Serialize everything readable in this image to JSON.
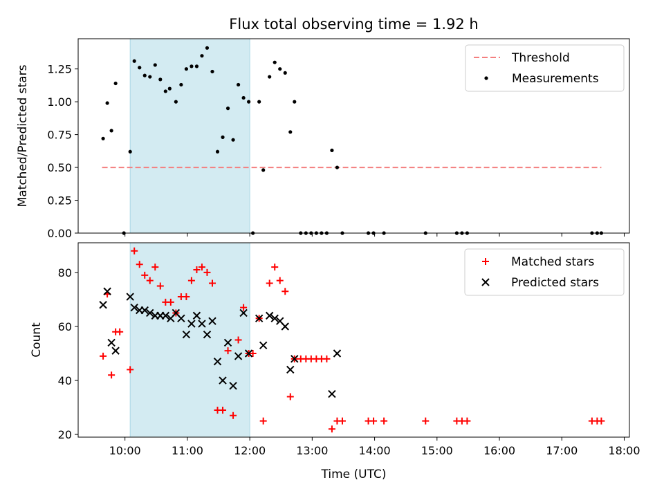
{
  "chart_data": [
    {
      "type": "scatter",
      "title": "Flux total observing time = 1.92 h",
      "xlabel": "",
      "ylabel": "Matched/Predicted stars",
      "xlim": [
        "09:15",
        "18:05"
      ],
      "ylim": [
        0,
        1.48
      ],
      "y_ticks": [
        0.0,
        0.25,
        0.5,
        0.75,
        1.0,
        1.25
      ],
      "y_tick_labels": [
        "0.00",
        "0.25",
        "0.50",
        "0.75",
        "1.00",
        "1.25"
      ],
      "x_ticks": [
        "10:00",
        "11:00",
        "12:00",
        "13:00",
        "14:00",
        "15:00",
        "16:00",
        "17:00",
        "18:00"
      ],
      "x_tick_labels_visible": false,
      "highlight_span": [
        "10:05",
        "12:00"
      ],
      "highlight_color": "#d3ebf2",
      "legend": {
        "position": "top-right",
        "entries": [
          "Threshold",
          "Measurements"
        ]
      },
      "series": [
        {
          "name": "Threshold",
          "kind": "dashed-line",
          "color": "#f47f7f",
          "x": [
            "09:38",
            "17:38"
          ],
          "y": [
            0.5,
            0.5
          ]
        },
        {
          "name": "Measurements",
          "kind": "dots",
          "color": "#000000",
          "x": [
            "09:39",
            "09:43",
            "09:47",
            "09:51",
            "09:59",
            "10:05",
            "10:09",
            "10:14",
            "10:19",
            "10:24",
            "10:29",
            "10:34",
            "10:39",
            "10:43",
            "10:49",
            "10:54",
            "10:59",
            "11:04",
            "11:09",
            "11:14",
            "11:19",
            "11:24",
            "11:29",
            "11:34",
            "11:39",
            "11:44",
            "11:49",
            "11:54",
            "11:59",
            "12:03",
            "12:09",
            "12:13",
            "12:19",
            "12:24",
            "12:29",
            "12:34",
            "12:39",
            "12:43",
            "12:49",
            "12:54",
            "12:59",
            "13:04",
            "13:09",
            "13:14",
            "13:19",
            "13:24",
            "13:29",
            "13:54",
            "13:59",
            "14:09",
            "14:49",
            "15:19",
            "15:24",
            "15:29",
            "17:29",
            "17:34",
            "17:38"
          ],
          "y": [
            0.72,
            0.99,
            0.78,
            1.14,
            0.0,
            0.62,
            1.31,
            1.26,
            1.2,
            1.19,
            1.28,
            1.17,
            1.08,
            1.1,
            1.0,
            1.13,
            1.25,
            1.27,
            1.27,
            1.35,
            1.41,
            1.23,
            0.62,
            0.73,
            0.95,
            0.71,
            1.13,
            1.03,
            1.0,
            0.0,
            1.0,
            0.48,
            1.19,
            1.3,
            1.25,
            1.22,
            0.77,
            1.0,
            0.0,
            0.0,
            0.0,
            0.0,
            0.0,
            0.0,
            0.63,
            0.5,
            0.0,
            0.0,
            0.0,
            0.0,
            0.0,
            0.0,
            0.0,
            0.0,
            0.0,
            0.0,
            0.0
          ]
        }
      ]
    },
    {
      "type": "scatter",
      "title": "",
      "xlabel": "Time (UTC)",
      "ylabel": "Count",
      "xlim": [
        "09:15",
        "18:05"
      ],
      "ylim": [
        19,
        91
      ],
      "y_ticks": [
        20,
        40,
        60,
        80
      ],
      "y_tick_labels": [
        "20",
        "40",
        "60",
        "80"
      ],
      "x_ticks": [
        "10:00",
        "11:00",
        "12:00",
        "13:00",
        "14:00",
        "15:00",
        "16:00",
        "17:00",
        "18:00"
      ],
      "x_tick_labels": [
        "10:00",
        "11:00",
        "12:00",
        "13:00",
        "14:00",
        "15:00",
        "16:00",
        "17:00",
        "18:00"
      ],
      "highlight_span": [
        "10:05",
        "12:00"
      ],
      "highlight_color": "#d3ebf2",
      "legend": {
        "position": "top-right",
        "entries": [
          "Matched stars",
          "Predicted stars"
        ]
      },
      "series": [
        {
          "name": "Matched stars",
          "kind": "plus",
          "color": "#ff0000",
          "x": [
            "09:39",
            "09:43",
            "09:47",
            "09:51",
            "09:55",
            "10:05",
            "10:09",
            "10:14",
            "10:19",
            "10:24",
            "10:29",
            "10:34",
            "10:39",
            "10:44",
            "10:49",
            "10:54",
            "10:59",
            "11:04",
            "11:09",
            "11:14",
            "11:19",
            "11:24",
            "11:29",
            "11:34",
            "11:39",
            "11:44",
            "11:49",
            "11:54",
            "11:59",
            "12:03",
            "12:09",
            "12:13",
            "12:19",
            "12:24",
            "12:29",
            "12:34",
            "12:39",
            "12:43",
            "12:49",
            "12:54",
            "12:59",
            "13:04",
            "13:09",
            "13:14",
            "13:19",
            "13:24",
            "13:29",
            "13:54",
            "13:59",
            "14:09",
            "14:49",
            "15:19",
            "15:24",
            "15:29",
            "17:29",
            "17:34",
            "17:38"
          ],
          "y": [
            49,
            72,
            42,
            58,
            58,
            44,
            88,
            83,
            79,
            77,
            82,
            75,
            69,
            69,
            65,
            71,
            71,
            77,
            81,
            82,
            80,
            76,
            29,
            29,
            51,
            27,
            55,
            67,
            50,
            50,
            63,
            25,
            76,
            82,
            77,
            73,
            34,
            48,
            48,
            48,
            48,
            48,
            48,
            48,
            22,
            25,
            25,
            25,
            25,
            25,
            25,
            25,
            25,
            25,
            25,
            25,
            25
          ]
        },
        {
          "name": "Predicted stars",
          "kind": "cross",
          "color": "#000000",
          "x": [
            "09:39",
            "09:43",
            "09:47",
            "09:51",
            "10:05",
            "10:09",
            "10:14",
            "10:19",
            "10:24",
            "10:29",
            "10:34",
            "10:39",
            "10:44",
            "10:49",
            "10:54",
            "10:59",
            "11:04",
            "11:09",
            "11:14",
            "11:19",
            "11:24",
            "11:29",
            "11:34",
            "11:39",
            "11:44",
            "11:49",
            "11:54",
            "11:59",
            "12:09",
            "12:13",
            "12:19",
            "12:24",
            "12:29",
            "12:34",
            "12:39",
            "12:43",
            "13:19",
            "13:24"
          ],
          "y": [
            68,
            73,
            54,
            51,
            71,
            67,
            66,
            66,
            65,
            64,
            64,
            64,
            63,
            65,
            63,
            57,
            61,
            64,
            61,
            57,
            62,
            47,
            40,
            54,
            38,
            49,
            65,
            50,
            63,
            53,
            64,
            63,
            62,
            60,
            44,
            48,
            35,
            50
          ]
        }
      ]
    }
  ]
}
